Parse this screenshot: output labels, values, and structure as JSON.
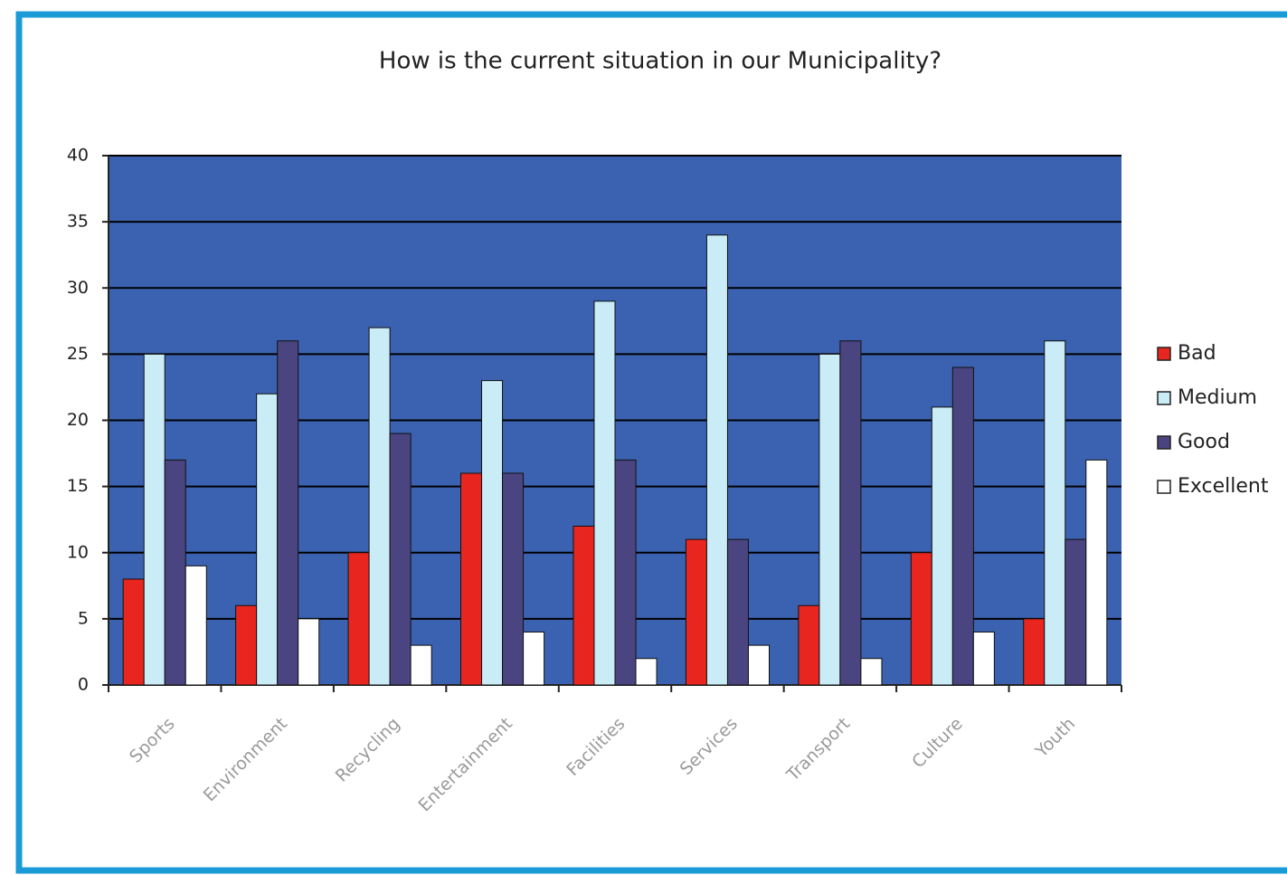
{
  "chart_data": {
    "type": "bar",
    "title": "How is the current situation in our Municipality?",
    "categories": [
      "Sports",
      "Environment",
      "Recycling",
      "Entertainment",
      "Facilities",
      "Services",
      "Transport",
      "Culture",
      "Youth"
    ],
    "series": [
      {
        "name": "Bad",
        "color": "#e8261f",
        "values": [
          8,
          6,
          10,
          16,
          12,
          11,
          6,
          10,
          5
        ]
      },
      {
        "name": "Medium",
        "color": "#c9ecf7",
        "values": [
          25,
          22,
          27,
          23,
          29,
          34,
          25,
          21,
          26
        ]
      },
      {
        "name": "Good",
        "color": "#4a4580",
        "values": [
          17,
          26,
          19,
          16,
          17,
          11,
          26,
          24,
          11
        ]
      },
      {
        "name": "Excellent",
        "color": "#ffffff",
        "values": [
          9,
          5,
          3,
          4,
          2,
          3,
          2,
          4,
          17
        ]
      }
    ],
    "ylim": [
      0,
      40
    ],
    "yticks": [
      0,
      5,
      10,
      15,
      20,
      25,
      30,
      35,
      40
    ],
    "grid": true,
    "legend": "right"
  }
}
